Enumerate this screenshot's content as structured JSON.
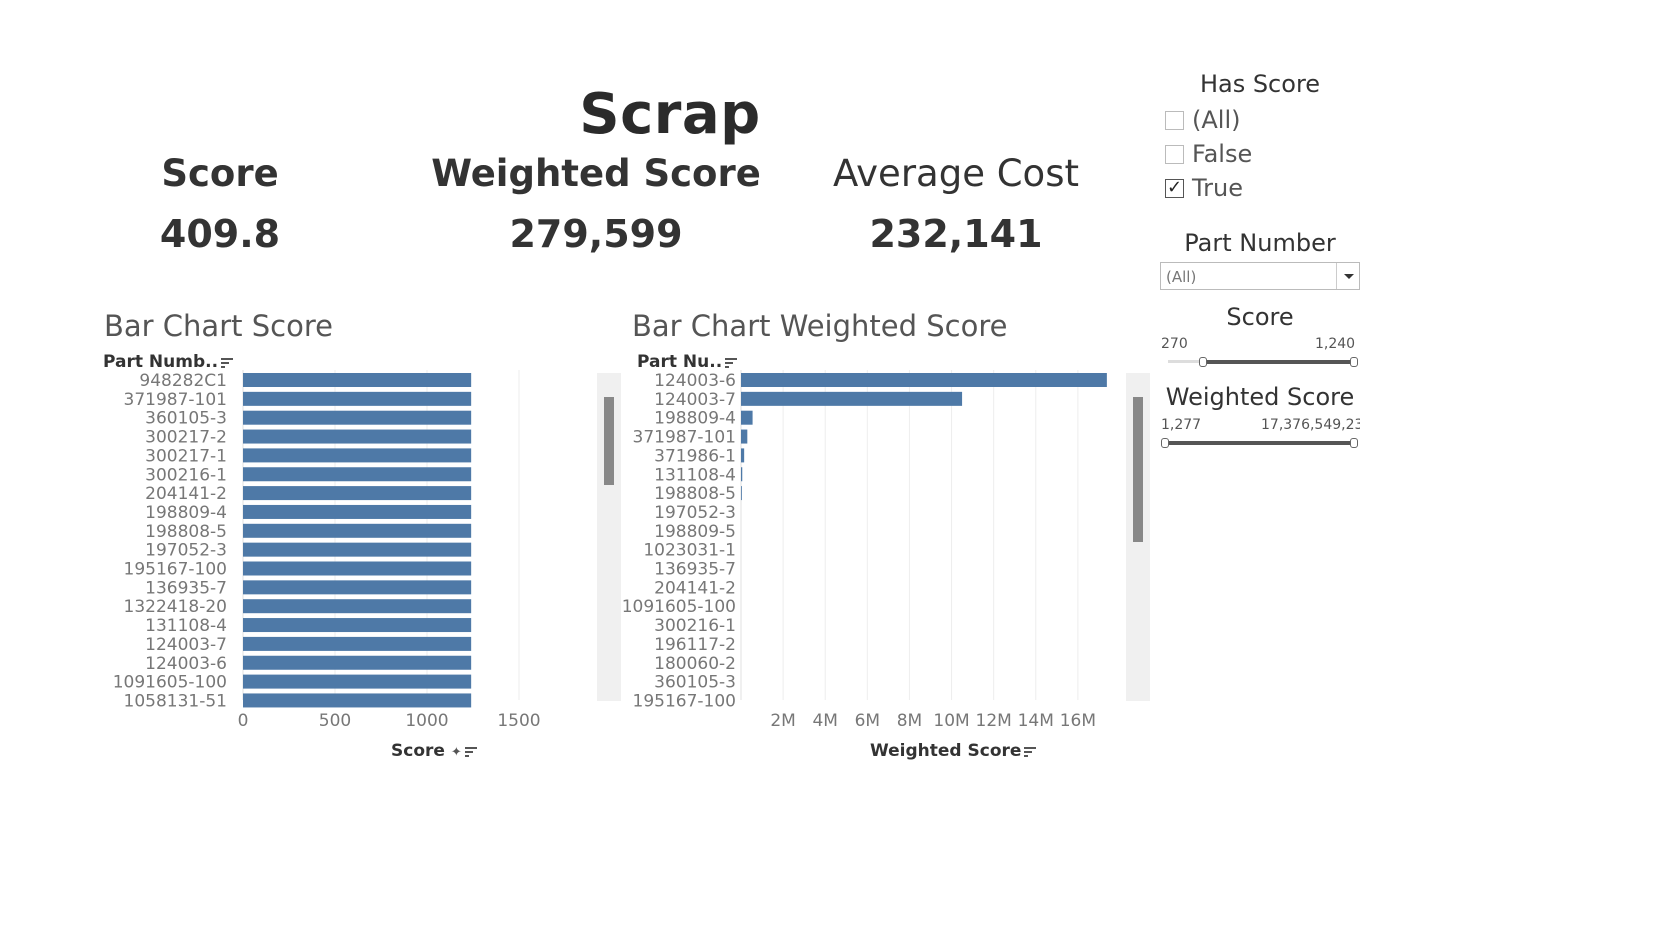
{
  "dashboard": {
    "title": "Scrap"
  },
  "kpis": [
    {
      "label": "Score",
      "value": "409.8"
    },
    {
      "label": "Weighted Score",
      "value": "279,599"
    },
    {
      "label": "Average Cost",
      "value": "232,141"
    }
  ],
  "filters": {
    "has_score": {
      "title": "Has Score",
      "options": [
        {
          "label": "(All)",
          "checked": false
        },
        {
          "label": "False",
          "checked": false
        },
        {
          "label": "True",
          "checked": true
        }
      ]
    },
    "part_number": {
      "title": "Part Number",
      "selected": "(All)"
    },
    "score": {
      "title": "Score",
      "min": "270",
      "max": "1,240"
    },
    "weighted_score": {
      "title": "Weighted Score",
      "min": "1,277",
      "max": "17,376,549,23"
    }
  },
  "chart_data": [
    {
      "type": "bar",
      "orientation": "horizontal",
      "title": "Bar Chart Score",
      "row_header": "Part Numb..",
      "xlabel": "Score",
      "xlim": [
        0,
        2000
      ],
      "x_ticks": [
        "0",
        "500",
        "1000",
        "1500"
      ],
      "x_tick_values": [
        0,
        500,
        1000,
        1500
      ],
      "color": "#4e79a7",
      "categories": [
        "948282C1",
        "371987-101",
        "360105-3",
        "300217-2",
        "300217-1",
        "300216-1",
        "204141-2",
        "198809-4",
        "198808-5",
        "197052-3",
        "195167-100",
        "136935-7",
        "1322418-20",
        "131108-4",
        "124003-7",
        "124003-6",
        "1091605-100",
        "1058131-51"
      ],
      "values": [
        1240,
        1240,
        1240,
        1240,
        1240,
        1240,
        1240,
        1240,
        1240,
        1240,
        1240,
        1240,
        1240,
        1240,
        1240,
        1240,
        1240,
        1240
      ]
    },
    {
      "type": "bar",
      "orientation": "horizontal",
      "title": "Bar Chart Weighted Score",
      "row_header": "Part Nu..",
      "xlabel": "Weighted Score",
      "xlim": [
        0,
        18000000
      ],
      "x_ticks": [
        "2M",
        "4M",
        "6M",
        "8M",
        "10M",
        "12M",
        "14M",
        "16M"
      ],
      "x_tick_values": [
        2000000,
        4000000,
        6000000,
        8000000,
        10000000,
        12000000,
        14000000,
        16000000
      ],
      "color": "#4e79a7",
      "categories": [
        "124003-6",
        "124003-7",
        "198809-4",
        "371987-101",
        "371986-1",
        "131108-4",
        "198808-5",
        "197052-3",
        "198809-5",
        "1023031-1",
        "136935-7",
        "204141-2",
        "1091605-100",
        "300216-1",
        "196117-2",
        "180060-2",
        "360105-3",
        "195167-100"
      ],
      "values": [
        17376549,
        10500000,
        550000,
        300000,
        150000,
        60000,
        40000,
        0,
        0,
        0,
        0,
        0,
        0,
        0,
        0,
        0,
        0,
        0
      ]
    }
  ]
}
